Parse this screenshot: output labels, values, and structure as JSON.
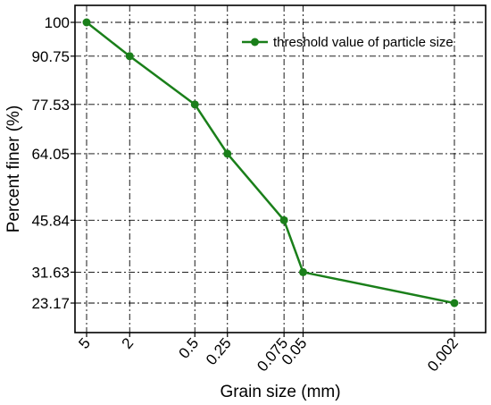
{
  "chart_data": {
    "type": "line",
    "title": "",
    "xlabel": "Grain size (mm)",
    "ylabel": "Percent finer (%)",
    "x_scale": "log",
    "x_reversed": true,
    "xlim": [
      5,
      0.002
    ],
    "ylim": [
      23.17,
      100
    ],
    "grid": true,
    "legend_position": "top-right",
    "x_ticks": [
      "5",
      "2",
      "0.5",
      "0.25",
      "0.075",
      "0.05",
      "0.002"
    ],
    "y_ticks": [
      "100",
      "90.75",
      "77.53",
      "64.05",
      "45.84",
      "31.63",
      "23.17"
    ],
    "series": [
      {
        "name": "threshold value of particle size",
        "color": "#1a7f1a",
        "marker": "circle",
        "x": [
          5,
          2,
          0.5,
          0.25,
          0.075,
          0.05,
          0.002
        ],
        "y": [
          100,
          90.75,
          77.53,
          64.05,
          45.84,
          31.63,
          23.17
        ]
      }
    ]
  }
}
